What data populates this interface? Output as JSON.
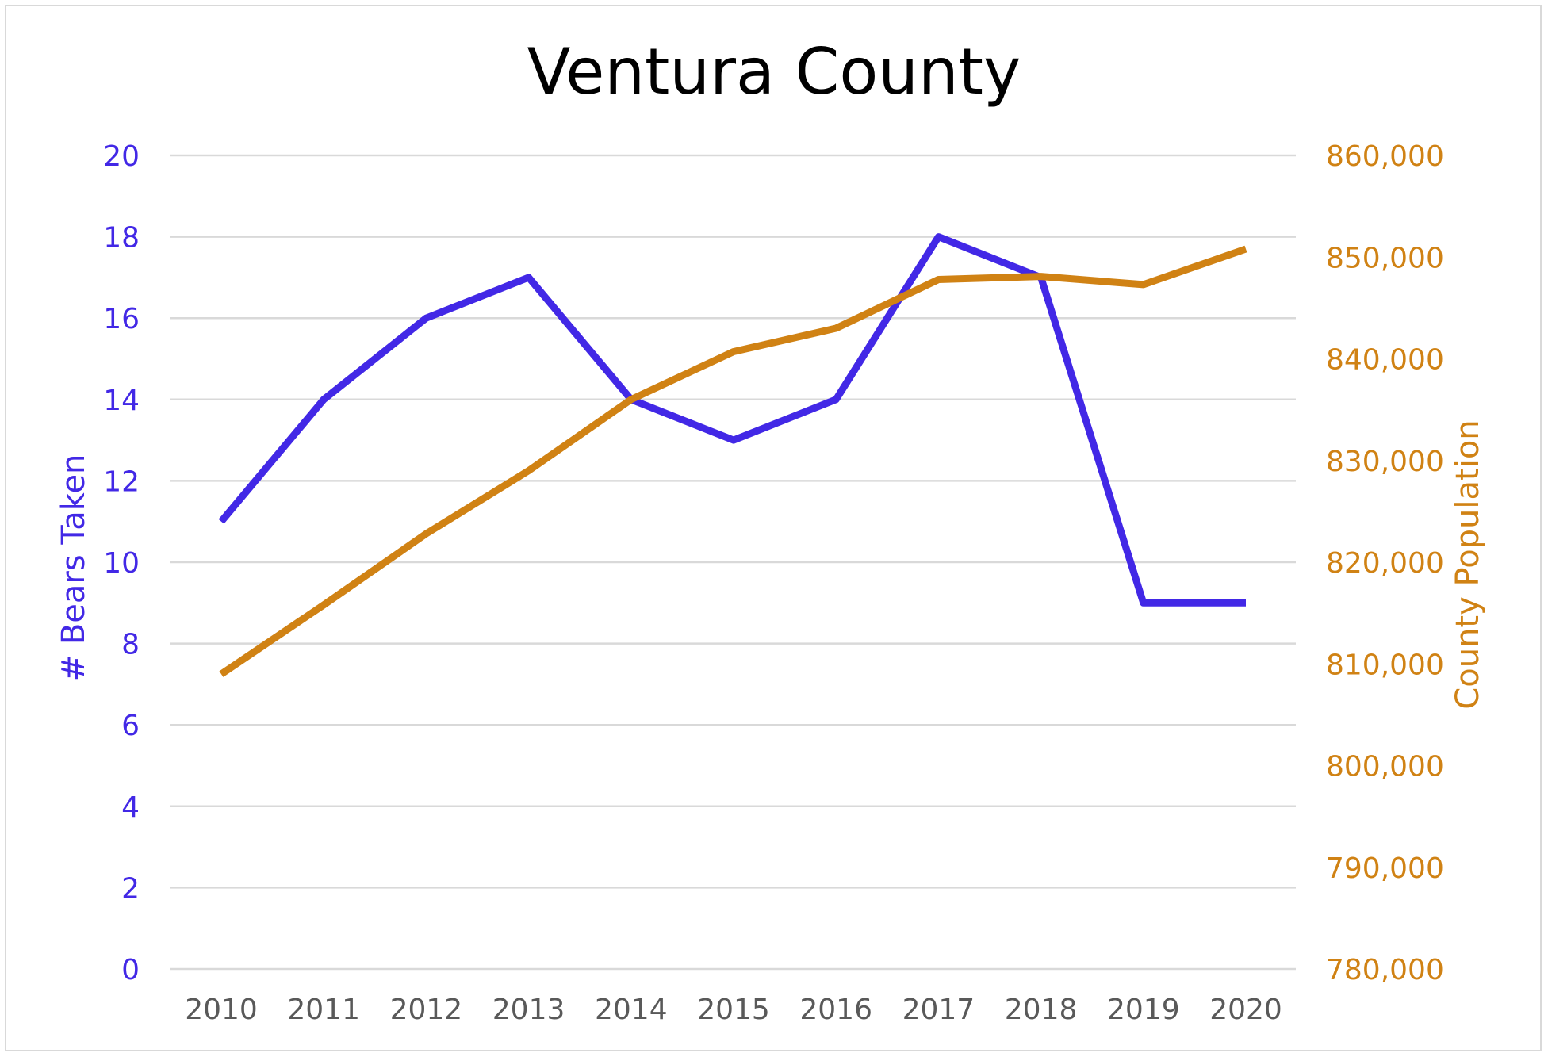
{
  "chart_data": {
    "type": "line",
    "title": "Ventura County",
    "x": [
      "2010",
      "2011",
      "2012",
      "2013",
      "2014",
      "2015",
      "2016",
      "2017",
      "2018",
      "2019",
      "2020"
    ],
    "y_left": {
      "label": "# Bears Taken",
      "ticks": [
        "0",
        "2",
        "4",
        "6",
        "8",
        "10",
        "12",
        "14",
        "16",
        "18",
        "20"
      ],
      "ylim": [
        0,
        20
      ],
      "color": "#4228e6"
    },
    "y_right": {
      "label": "County Population",
      "ticks": [
        "780,000",
        "790,000",
        "800,000",
        "810,000",
        "820,000",
        "830,000",
        "840,000",
        "850,000",
        "860,000"
      ],
      "ylim": [
        780000,
        860000
      ],
      "color": "#d08214"
    },
    "series": [
      {
        "axis": "left",
        "color": "#4228e6",
        "values": [
          11,
          14,
          16,
          17,
          14,
          13,
          14,
          18,
          17,
          9,
          9
        ]
      },
      {
        "axis": "right",
        "color": "#d08214",
        "values": [
          809000,
          815800,
          822800,
          829000,
          836000,
          840700,
          843000,
          847800,
          848100,
          847300,
          850800
        ]
      }
    ],
    "grid": true,
    "legend": "none"
  }
}
